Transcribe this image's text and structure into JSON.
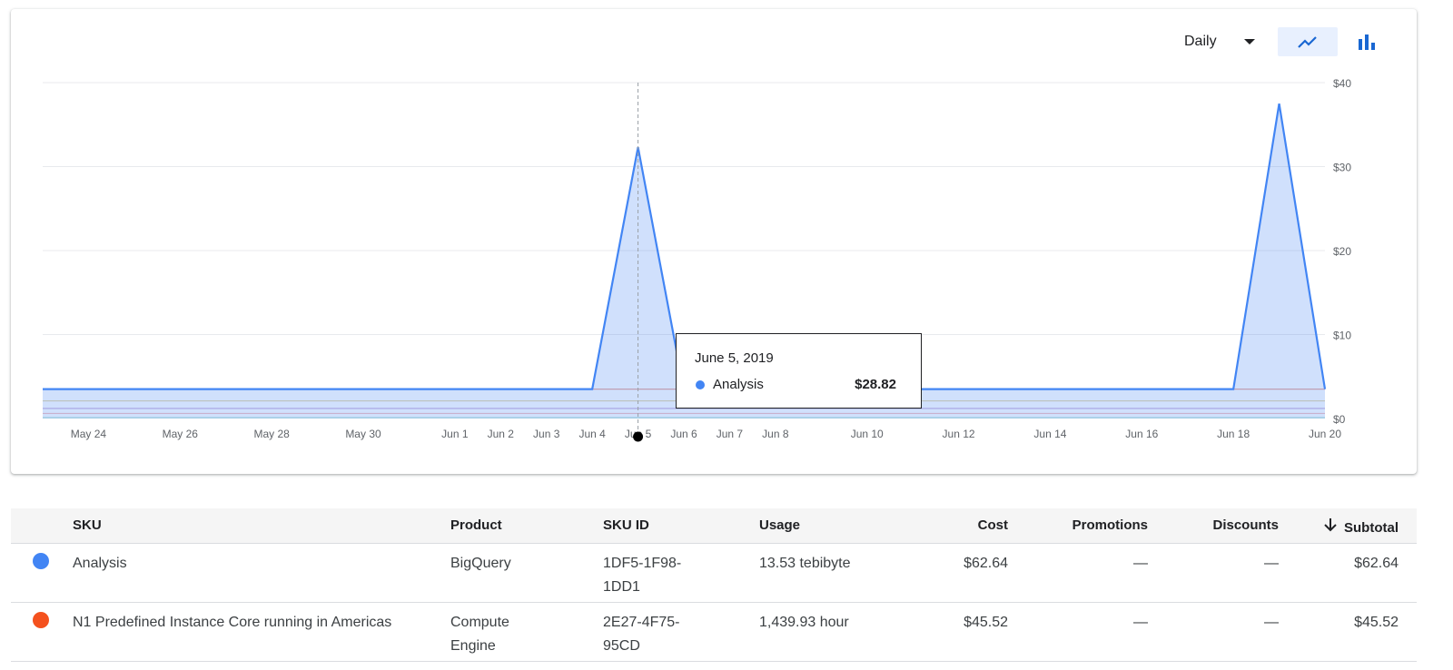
{
  "controls": {
    "period": "Daily",
    "icons": {
      "period_dropdown": "arrow-drop-down-icon",
      "line_view": "line-chart-icon",
      "bar_view": "bar-chart-icon"
    },
    "active_view": "line"
  },
  "tooltip": {
    "date": "June 5, 2019",
    "series": "Analysis",
    "value": "$28.82"
  },
  "chart_data": {
    "type": "area",
    "x_tick_labels": [
      "May 24",
      "May 26",
      "May 28",
      "May 30",
      "Jun 1",
      "Jun 2",
      "Jun 3",
      "Jun 4",
      "Jun 5",
      "Jun 6",
      "Jun 7",
      "Jun 8",
      "Jun 10",
      "Jun 12",
      "Jun 14",
      "Jun 16",
      "Jun 18",
      "Jun 20"
    ],
    "y_tick_labels": [
      "$0",
      "$10",
      "$20",
      "$30",
      "$40"
    ],
    "ylim": [
      0,
      40
    ],
    "y_axis_position": "right",
    "grid": true,
    "highlighted_date": "Jun 5",
    "series": [
      {
        "name": "Analysis",
        "color": "#4285f4",
        "filled": true,
        "points": [
          [
            "May 23",
            3.5
          ],
          [
            "Jun 4",
            3.5
          ],
          [
            "Jun 5",
            32.3
          ],
          [
            "Jun 6",
            3.5
          ],
          [
            "Jun 18",
            3.5
          ],
          [
            "Jun 19",
            37.5
          ],
          [
            "Jun 20",
            3.5
          ]
        ]
      },
      {
        "color": "#e8a89e",
        "filled": false,
        "points": [
          [
            "May 23",
            3.5
          ],
          [
            "Jun 20",
            3.5
          ]
        ]
      },
      {
        "color": "#e6d8a8",
        "filled": false,
        "points": [
          [
            "May 23",
            2.1
          ],
          [
            "Jun 20",
            2.1
          ]
        ]
      },
      {
        "color": "#cdb6e0",
        "filled": false,
        "points": [
          [
            "May 23",
            1.2
          ],
          [
            "Jun 20",
            1.2
          ]
        ]
      },
      {
        "color": "#f4c0c0",
        "filled": false,
        "points": [
          [
            "May 23",
            0.6
          ],
          [
            "Jun 20",
            0.6
          ]
        ]
      },
      {
        "color": "#a8d8d0",
        "filled": false,
        "points": [
          [
            "May 23",
            0.1
          ],
          [
            "Jun 20",
            0.1
          ]
        ]
      }
    ]
  },
  "table": {
    "headers": {
      "sku": "SKU",
      "product": "Product",
      "sku_id": "SKU ID",
      "usage": "Usage",
      "cost": "Cost",
      "promotions": "Promotions",
      "discounts": "Discounts",
      "subtotal": "Subtotal"
    },
    "sort_icon": "arrow-downward-icon",
    "rows": [
      {
        "color": "#4285f4",
        "sku": "Analysis",
        "product": "BigQuery",
        "sku_id": "1DF5-1F98-1DD1",
        "usage": "13.53 tebibyte",
        "cost": "$62.64",
        "promotions": "—",
        "discounts": "—",
        "subtotal": "$62.64"
      },
      {
        "color": "#f4511e",
        "sku": "N1 Predefined Instance Core running in Americas",
        "product": "Compute Engine",
        "sku_id": "2E27-4F75-95CD",
        "usage": "1,439.93 hour",
        "cost": "$45.52",
        "promotions": "—",
        "discounts": "—",
        "subtotal": "$45.52"
      }
    ]
  }
}
